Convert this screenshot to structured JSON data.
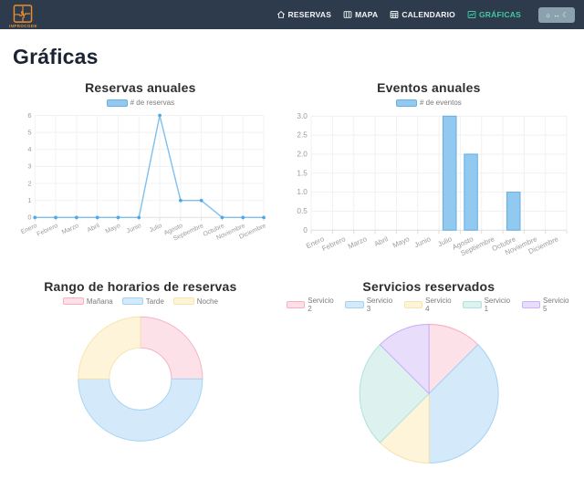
{
  "navbar": {
    "brand": "INPROCODE",
    "items": [
      {
        "label": "RESERVAS",
        "icon": "home-icon",
        "active": false
      },
      {
        "label": "MAPA",
        "icon": "map-icon",
        "active": false
      },
      {
        "label": "CALENDARIO",
        "icon": "calendar-icon",
        "active": false
      },
      {
        "label": "GRÁFICAS",
        "icon": "chart-icon",
        "active": true
      }
    ],
    "theme_toggle": {
      "sun": "☼",
      "arrows": "↔",
      "moon": "☾"
    },
    "colors": {
      "background": "#2d3b4d",
      "active_link": "#41c9a2",
      "brand_orange": "#e98d2e"
    }
  },
  "page": {
    "title": "Gráficas"
  },
  "chart_style": {
    "grid_color": "#f1f1f1",
    "axis_color": "#dedede",
    "tick_color": "#9c9c9c",
    "blue_fill": "#92c9f0",
    "blue_border": "#65afe5",
    "line_stroke": "#7fbfee",
    "point_color": "#53a7e2"
  },
  "chart_data": [
    {
      "type": "line",
      "title": "Reservas anuales",
      "legend": "# de reservas",
      "categories": [
        "Enero",
        "Febrero",
        "Marzo",
        "Abril",
        "Mayo",
        "Junio",
        "Julio",
        "Agosto",
        "Septiembre",
        "Octubre",
        "Noviembre",
        "Diciembre"
      ],
      "values": [
        0,
        0,
        0,
        0,
        0,
        0,
        6,
        1,
        1,
        0,
        0,
        0
      ],
      "ylim": [
        0,
        6
      ],
      "yticks": [
        "0",
        "1",
        "2",
        "3",
        "4",
        "5",
        "6"
      ],
      "grid": true,
      "legend_position": "top"
    },
    {
      "type": "bar",
      "title": "Eventos anuales",
      "legend": "# de eventos",
      "categories": [
        "Enero",
        "Febrero",
        "Marzo",
        "Abril",
        "Mayo",
        "Junio",
        "Julio",
        "Agosto",
        "Septiembre",
        "Octubre",
        "Noviembre",
        "Diciembre"
      ],
      "values": [
        0,
        0,
        0,
        0,
        0,
        0,
        3,
        2,
        0,
        1,
        0,
        0
      ],
      "ylim": [
        0,
        3
      ],
      "yticks": [
        "0",
        "0.5",
        "1.0",
        "1.5",
        "2.0",
        "2.5",
        "3.0"
      ],
      "grid": true,
      "legend_position": "top"
    },
    {
      "type": "doughnut",
      "title": "Rango de horarios de reservas",
      "labels": [
        "Mañana",
        "Tarde",
        "Noche"
      ],
      "values": [
        25,
        50,
        25
      ],
      "fills": [
        "#fde1e8",
        "#d4eafa",
        "#fef4d9"
      ],
      "borders": [
        "#f8afc1",
        "#a2d3f3",
        "#f8e3ab"
      ],
      "cutout_ratio": 0.5,
      "legend_position": "top"
    },
    {
      "type": "pie",
      "title": "Servicios reservados",
      "labels": [
        "Servicio 2",
        "Servicio 3",
        "Servicio 4",
        "Servicio 1",
        "Servicio 5"
      ],
      "values": [
        12.5,
        37.5,
        12.5,
        25,
        12.5
      ],
      "fills": [
        "#fde1e8",
        "#d4eafa",
        "#fef4d9",
        "#ddf2ee",
        "#e9ddfc"
      ],
      "borders": [
        "#f8afc1",
        "#a2d3f3",
        "#f8e3ab",
        "#aee4de",
        "#c9b2f5"
      ],
      "cutout_ratio": 0,
      "legend_position": "top"
    }
  ]
}
